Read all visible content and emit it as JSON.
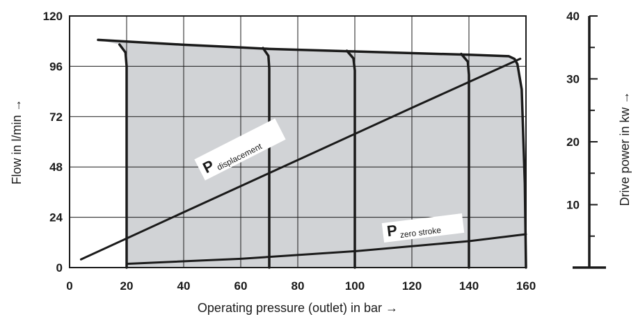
{
  "colors": {
    "fill": "#d1d3d6",
    "line": "#1a1a1a",
    "grid": "#1a1a1a",
    "label_bg": "#ffffff"
  },
  "chart_data": {
    "type": "line",
    "xlabel": "Operating pressure (outlet) in bar →",
    "ylabel": "Flow in l/min →",
    "y2label": "Drive power in kw →",
    "xlim": [
      0,
      160
    ],
    "ylim": [
      0,
      120
    ],
    "y2lim": [
      0,
      40
    ],
    "x_ticks": [
      0,
      20,
      40,
      60,
      80,
      100,
      120,
      140,
      160
    ],
    "y_ticks": [
      0,
      24,
      48,
      72,
      96,
      120
    ],
    "y2_ticks": [
      10,
      20,
      30,
      40
    ],
    "grid": true,
    "flow_envelope": [
      {
        "x": 10,
        "y": 108.6
      },
      {
        "x": 20,
        "y": 107.8
      },
      {
        "x": 40,
        "y": 106.3
      },
      {
        "x": 60,
        "y": 105.0
      },
      {
        "x": 70,
        "y": 104.3
      },
      {
        "x": 100,
        "y": 103.1
      },
      {
        "x": 140,
        "y": 101.5
      },
      {
        "x": 154,
        "y": 100.8
      },
      {
        "x": 156,
        "y": 99.5
      },
      {
        "x": 157,
        "y": 97.0
      }
    ],
    "cutoff_curves": [
      {
        "name": "",
        "setting": 20,
        "points": [
          [
            17.5,
            106.4
          ],
          [
            19.6,
            102.6
          ],
          [
            20,
            96
          ],
          [
            20,
            0
          ]
        ]
      },
      {
        "name": "",
        "setting": 70,
        "points": [
          [
            67.8,
            104.7
          ],
          [
            69.7,
            101.0
          ],
          [
            70,
            95
          ],
          [
            70,
            0
          ]
        ]
      },
      {
        "name": "",
        "setting": 100,
        "points": [
          [
            97.2,
            103.4
          ],
          [
            99.5,
            99.8
          ],
          [
            100,
            94
          ],
          [
            100,
            0
          ]
        ]
      },
      {
        "name": "",
        "setting": 140,
        "points": [
          [
            137.3,
            101.9
          ],
          [
            139.6,
            98.2
          ],
          [
            140,
            92
          ],
          [
            140,
            0
          ]
        ]
      },
      {
        "name": "",
        "setting": 160,
        "points": [
          [
            157,
            97.0
          ],
          [
            158.5,
            85
          ],
          [
            159.6,
            40
          ],
          [
            160,
            0
          ]
        ]
      }
    ],
    "series": [
      {
        "name": "P displacement",
        "label_main": "P",
        "label_sub": "displacement",
        "axis": "y2",
        "points": [
          [
            4,
            1.3
          ],
          [
            40,
            8.8
          ],
          [
            80,
            17.1
          ],
          [
            120,
            25.4
          ],
          [
            158,
            33.2
          ]
        ]
      },
      {
        "name": "P zero stroke",
        "label_main": "P",
        "label_sub": "zero stroke",
        "axis": "y2",
        "points": [
          [
            20,
            0.6
          ],
          [
            60,
            1.4
          ],
          [
            100,
            2.6
          ],
          [
            140,
            4.2
          ],
          [
            160,
            5.3
          ]
        ]
      }
    ]
  }
}
